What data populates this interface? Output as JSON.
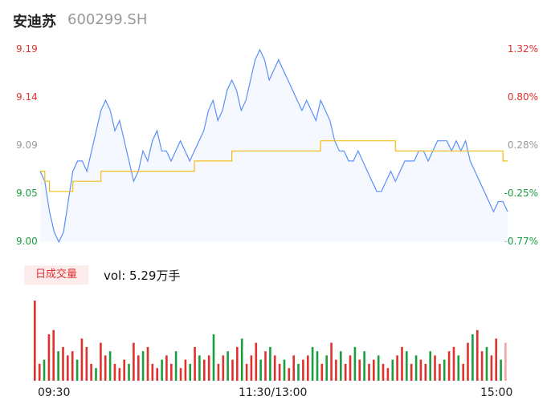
{
  "header": {
    "name": "安迪苏",
    "code": "600299.SH"
  },
  "volume": {
    "tag": "日成交量",
    "text": "vol: 5.29万手"
  },
  "colors": {
    "price": "#5b8ff9",
    "avg": "#f6bd16",
    "up": "#e0312f",
    "down": "#1a9e3f",
    "neutral": "#999999"
  },
  "chart_data": [
    {
      "type": "line",
      "y_left_ticks": [
        "9.19",
        "9.14",
        "9.09",
        "9.05",
        "9.00"
      ],
      "y_right_ticks": [
        "1.32%",
        "0.80%",
        "0.28%",
        "-0.25%",
        "-0.77%"
      ],
      "ylim": [
        9.0,
        9.19
      ],
      "series": [
        {
          "role": "price",
          "values": [
            9.07,
            9.06,
            9.03,
            9.01,
            9.0,
            9.01,
            9.04,
            9.07,
            9.08,
            9.08,
            9.07,
            9.09,
            9.11,
            9.13,
            9.14,
            9.13,
            9.11,
            9.12,
            9.1,
            9.08,
            9.06,
            9.07,
            9.09,
            9.08,
            9.1,
            9.11,
            9.09,
            9.09,
            9.08,
            9.09,
            9.1,
            9.09,
            9.08,
            9.09,
            9.1,
            9.11,
            9.13,
            9.14,
            9.12,
            9.13,
            9.15,
            9.16,
            9.15,
            9.13,
            9.14,
            9.16,
            9.18,
            9.19,
            9.18,
            9.16,
            9.17,
            9.18,
            9.17,
            9.16,
            9.15,
            9.14,
            9.13,
            9.14,
            9.13,
            9.12,
            9.14,
            9.13,
            9.12,
            9.1,
            9.09,
            9.09,
            9.08,
            9.08,
            9.09,
            9.08,
            9.07,
            9.06,
            9.05,
            9.05,
            9.06,
            9.07,
            9.06,
            9.07,
            9.08,
            9.08,
            9.08,
            9.09,
            9.09,
            9.08,
            9.09,
            9.1,
            9.1,
            9.1,
            9.09,
            9.1,
            9.09,
            9.1,
            9.08,
            9.07,
            9.06,
            9.05,
            9.04,
            9.03,
            9.04,
            9.04,
            9.03
          ]
        },
        {
          "role": "average",
          "values": [
            9.07,
            9.06,
            9.05,
            9.05,
            9.05,
            9.05,
            9.05,
            9.06,
            9.06,
            9.06,
            9.06,
            9.06,
            9.06,
            9.07,
            9.07,
            9.07,
            9.07,
            9.07,
            9.07,
            9.07,
            9.07,
            9.07,
            9.07,
            9.07,
            9.07,
            9.07,
            9.07,
            9.07,
            9.07,
            9.07,
            9.07,
            9.07,
            9.07,
            9.08,
            9.08,
            9.08,
            9.08,
            9.08,
            9.08,
            9.08,
            9.08,
            9.09,
            9.09,
            9.09,
            9.09,
            9.09,
            9.09,
            9.09,
            9.09,
            9.09,
            9.09,
            9.09,
            9.09,
            9.09,
            9.09,
            9.09,
            9.09,
            9.09,
            9.09,
            9.09,
            9.1,
            9.1,
            9.1,
            9.1,
            9.1,
            9.1,
            9.1,
            9.1,
            9.1,
            9.1,
            9.1,
            9.1,
            9.1,
            9.1,
            9.1,
            9.1,
            9.09,
            9.09,
            9.09,
            9.09,
            9.09,
            9.09,
            9.09,
            9.09,
            9.09,
            9.09,
            9.09,
            9.09,
            9.09,
            9.09,
            9.09,
            9.09,
            9.09,
            9.09,
            9.09,
            9.09,
            9.09,
            9.09,
            9.09,
            9.08,
            9.08
          ]
        }
      ]
    },
    {
      "type": "bar",
      "x_ticks": [
        "09:30",
        "11:30/13:00",
        "15:00"
      ],
      "values": [
        95,
        20,
        25,
        55,
        60,
        35,
        40,
        30,
        35,
        25,
        50,
        40,
        20,
        15,
        45,
        30,
        35,
        20,
        15,
        25,
        20,
        45,
        30,
        35,
        40,
        20,
        15,
        25,
        30,
        20,
        35,
        15,
        25,
        20,
        40,
        30,
        25,
        30,
        55,
        20,
        30,
        35,
        25,
        40,
        50,
        20,
        30,
        45,
        25,
        35,
        40,
        30,
        20,
        25,
        15,
        30,
        20,
        25,
        30,
        40,
        35,
        20,
        30,
        45,
        25,
        35,
        20,
        30,
        40,
        25,
        35,
        20,
        25,
        30,
        20,
        15,
        25,
        30,
        40,
        35,
        20,
        30,
        25,
        20,
        35,
        30,
        20,
        25,
        35,
        40,
        30,
        20,
        45,
        55,
        60,
        35,
        40,
        30,
        50,
        25,
        45
      ],
      "colors": [
        "up",
        "up",
        "down",
        "up",
        "up",
        "down",
        "up",
        "up",
        "up",
        "down",
        "up",
        "up",
        "up",
        "down",
        "up",
        "up",
        "down",
        "up",
        "up",
        "up",
        "down",
        "up",
        "up",
        "down",
        "up",
        "up",
        "up",
        "down",
        "up",
        "up",
        "down",
        "up",
        "up",
        "down",
        "up",
        "down",
        "up",
        "up",
        "down",
        "up",
        "up",
        "down",
        "up",
        "up",
        "down",
        "up",
        "up",
        "up",
        "down",
        "up",
        "down",
        "up",
        "up",
        "down",
        "up",
        "up",
        "down",
        "up",
        "up",
        "down",
        "down",
        "up",
        "down",
        "up",
        "up",
        "down",
        "up",
        "up",
        "down",
        "up",
        "down",
        "up",
        "up",
        "down",
        "up",
        "up",
        "down",
        "up",
        "up",
        "down",
        "up",
        "down",
        "up",
        "up",
        "down",
        "up",
        "up",
        "down",
        "up",
        "up",
        "down",
        "up",
        "up",
        "down",
        "up",
        "up",
        "down",
        "up",
        "up",
        "down",
        "neutral"
      ]
    }
  ]
}
